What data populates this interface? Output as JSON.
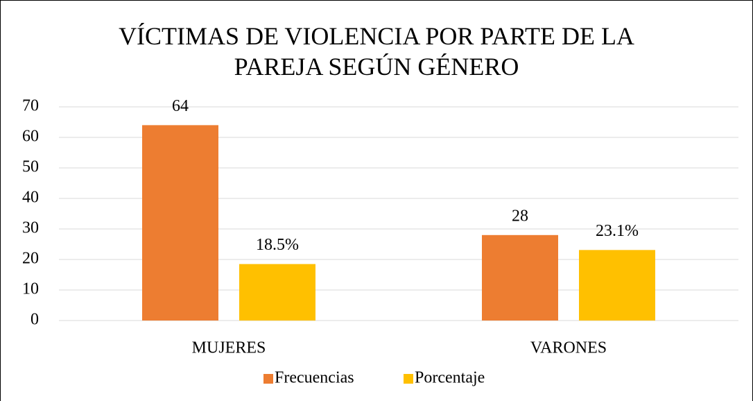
{
  "chart_data": {
    "type": "bar",
    "title": "VÍCTIMAS DE VIOLENCIA POR PARTE DE LA PAREJA SEGÚN GÉNERO",
    "categories": [
      "MUJERES",
      "VARONES"
    ],
    "series": [
      {
        "name": "Frecuencias",
        "color": "#ed7d31",
        "values": [
          64,
          28
        ]
      },
      {
        "name": "Porcentaje",
        "color": "#ffc000",
        "values": [
          18.5,
          23.1
        ],
        "value_labels": [
          "18.5%",
          "23.1%"
        ]
      }
    ],
    "ylim": [
      0,
      70
    ],
    "yticks": [
      0,
      10,
      20,
      30,
      40,
      50,
      60,
      70
    ],
    "grid": true,
    "legend": "bottom"
  }
}
